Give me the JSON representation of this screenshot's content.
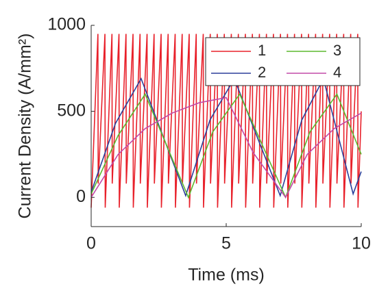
{
  "chart_data": {
    "type": "line",
    "xlabel": "Time (ms)",
    "ylabel": "Current Density (A/mm²)",
    "xlim": [
      0,
      10
    ],
    "ylim": [
      -170,
      1000
    ],
    "xticks": [
      0,
      5,
      10
    ],
    "yticks": [
      0,
      500,
      1000
    ],
    "series": [
      {
        "name": "1",
        "color": "#e8202a",
        "x": [
          0,
          0.25,
          0.26,
          0.51,
          0.52,
          0.77,
          0.78,
          1.03,
          1.04,
          1.29,
          1.3,
          1.55,
          1.56,
          1.81,
          1.82,
          2.07,
          2.08,
          2.33,
          2.34,
          2.59,
          2.6,
          2.85,
          2.86,
          3.11,
          3.12,
          3.37,
          3.38,
          3.63,
          3.64,
          3.89,
          3.9,
          4.15,
          4.16,
          4.41,
          4.42,
          4.67,
          4.68,
          4.93,
          4.94,
          5.19,
          5.2,
          5.45,
          5.46,
          5.71,
          5.72,
          5.97,
          5.98,
          6.23,
          6.24,
          6.49,
          6.5,
          6.75,
          6.76,
          7.01,
          7.02,
          7.27,
          7.28,
          7.53,
          7.54,
          7.79,
          7.8,
          8.05,
          8.06,
          8.31,
          8.32,
          8.57,
          8.58,
          8.83,
          8.84,
          9.09,
          9.1,
          9.35,
          9.36,
          9.61,
          9.62,
          9.87,
          9.88,
          10
        ],
        "values": [
          -60,
          950,
          80,
          950,
          -60,
          950,
          80,
          950,
          -60,
          950,
          80,
          950,
          -60,
          950,
          80,
          950,
          -60,
          950,
          80,
          950,
          -60,
          950,
          80,
          950,
          -60,
          950,
          80,
          950,
          -60,
          950,
          80,
          950,
          -60,
          950,
          80,
          950,
          -60,
          950,
          80,
          950,
          -60,
          950,
          80,
          950,
          -60,
          950,
          80,
          950,
          -60,
          950,
          80,
          950,
          -60,
          950,
          80,
          950,
          -60,
          950,
          80,
          950,
          -60,
          950,
          80,
          950,
          -60,
          950,
          80,
          950,
          -60,
          950,
          80,
          950,
          -60,
          950,
          80,
          950,
          -60,
          500
        ]
      },
      {
        "name": "2",
        "color": "#2b3f9a",
        "x": [
          0,
          0.9,
          1.85,
          3.5,
          4.4,
          5.3,
          7.0,
          7.8,
          8.6,
          9.7,
          10
        ],
        "values": [
          30,
          430,
          690,
          10,
          450,
          690,
          10,
          450,
          690,
          20,
          150
        ]
      },
      {
        "name": "3",
        "color": "#5cb82e",
        "x": [
          0,
          1,
          2,
          3.6,
          4.5,
          5.5,
          7.2,
          8.1,
          9.1,
          10
        ],
        "values": [
          20,
          360,
          600,
          0,
          380,
          600,
          0,
          380,
          600,
          250
        ]
      },
      {
        "name": "4",
        "color": "#c24aa8",
        "x": [
          0,
          1,
          2,
          3,
          4,
          5,
          6,
          7.2,
          8,
          9,
          10
        ],
        "values": [
          0,
          250,
          400,
          490,
          550,
          580,
          260,
          0,
          250,
          400,
          490
        ]
      }
    ]
  }
}
